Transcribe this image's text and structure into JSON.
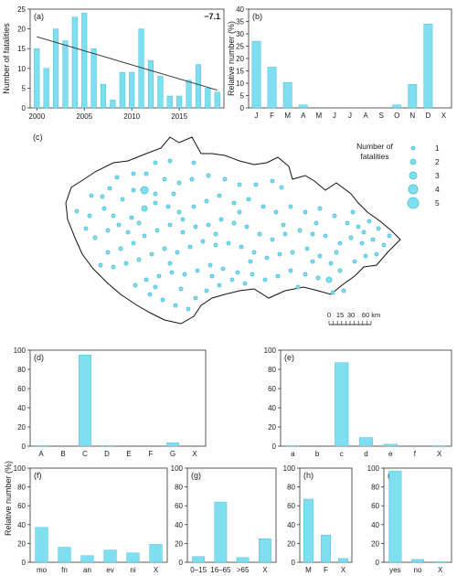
{
  "colors": {
    "bar": "#7ddff0",
    "bar_stroke": "#3cb4cc",
    "axis": "#333333",
    "trend": "#333333",
    "map_border": "#111111"
  },
  "chart_data": [
    {
      "id": "a",
      "type": "bar",
      "panel_label": "(a)",
      "annotation": "−7.1",
      "ylabel": "Number of fatalities",
      "ylim": [
        0,
        25
      ],
      "yticks": [
        0,
        5,
        10,
        15,
        20,
        25
      ],
      "x": [
        2000,
        2001,
        2002,
        2003,
        2004,
        2005,
        2006,
        2007,
        2008,
        2009,
        2010,
        2011,
        2012,
        2013,
        2014,
        2015,
        2016,
        2017,
        2018,
        2019
      ],
      "values": [
        15,
        10,
        20,
        17,
        23,
        24,
        15,
        6,
        2,
        9,
        9,
        20,
        12,
        8,
        3,
        3,
        7,
        11,
        5,
        4
      ],
      "xtick_labels": [
        "2000",
        "2005",
        "2010",
        "2015"
      ],
      "xtick_values": [
        2000,
        2005,
        2010,
        2015
      ],
      "trend": [
        18.0,
        4.5
      ]
    },
    {
      "id": "b",
      "type": "bar",
      "panel_label": "(b)",
      "ylabel": "Relative number (%)",
      "ylim": [
        0,
        40
      ],
      "yticks": [
        0,
        5,
        10,
        15,
        20,
        25,
        30,
        35,
        40
      ],
      "categories": [
        "J",
        "F",
        "M",
        "A",
        "M",
        "J",
        "J",
        "A",
        "S",
        "O",
        "N",
        "D",
        "X"
      ],
      "values": [
        27,
        16.5,
        10.3,
        1.2,
        0,
        0,
        0,
        0,
        0,
        1.2,
        9.5,
        34,
        0
      ]
    },
    {
      "id": "d",
      "type": "bar",
      "panel_label": "(d)",
      "ylabel": "",
      "ylim": [
        0,
        100
      ],
      "yticks": [
        0,
        20,
        40,
        60,
        80,
        100
      ],
      "categories": [
        "A",
        "B",
        "C",
        "D",
        "E",
        "F",
        "G",
        "X"
      ],
      "values": [
        0.5,
        0,
        95,
        0.5,
        0,
        0,
        3.5,
        0
      ]
    },
    {
      "id": "e",
      "type": "bar",
      "panel_label": "(e)",
      "ylabel": "",
      "ylim": [
        0,
        100
      ],
      "yticks": [
        0,
        20,
        40,
        60,
        80,
        100
      ],
      "categories": [
        "a",
        "b",
        "c",
        "d",
        "e",
        "f",
        "X"
      ],
      "values": [
        0.5,
        0,
        87,
        9,
        2,
        0,
        0.5
      ]
    },
    {
      "id": "f",
      "type": "bar",
      "panel_label": "(f)",
      "ylabel": "",
      "ylim": [
        0,
        100
      ],
      "yticks": [
        0,
        20,
        40,
        60,
        80,
        100
      ],
      "categories": [
        "mo",
        "fn",
        "an",
        "ev",
        "ni",
        "X"
      ],
      "values": [
        37,
        16,
        7,
        13,
        10,
        19
      ]
    },
    {
      "id": "g",
      "type": "bar",
      "panel_label": "(g)",
      "ylabel": "",
      "ylim": [
        0,
        100
      ],
      "yticks": [
        0,
        20,
        40,
        60,
        80,
        100
      ],
      "categories": [
        "0–15",
        "16–65",
        ">65",
        "X"
      ],
      "values": [
        6,
        64,
        5,
        25
      ]
    },
    {
      "id": "h",
      "type": "bar",
      "panel_label": "(h)",
      "ylabel": "",
      "ylim": [
        0,
        100
      ],
      "yticks": [
        0,
        20,
        40,
        60,
        80,
        100
      ],
      "categories": [
        "M",
        "F",
        "X"
      ],
      "values": [
        67,
        29,
        4
      ]
    },
    {
      "id": "i",
      "type": "bar",
      "panel_label": "(i)",
      "ylabel": "",
      "ylim": [
        0,
        100
      ],
      "yticks": [
        0,
        20,
        40,
        60,
        80,
        100
      ],
      "categories": [
        "yes",
        "no",
        "X"
      ],
      "values": [
        97,
        3,
        0.5
      ]
    }
  ],
  "shared_ylabel": "Relative number (%)",
  "map": {
    "panel_label": "(c)",
    "legend_title": [
      "Number of",
      "fatalities"
    ],
    "legend_values": [
      1,
      2,
      3,
      4,
      5
    ],
    "scale_labels": [
      "0",
      "15",
      "30",
      "60 km"
    ]
  }
}
